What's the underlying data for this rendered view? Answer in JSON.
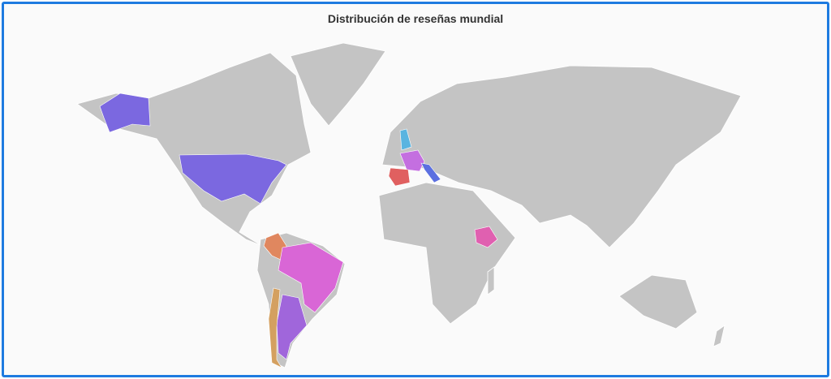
{
  "title": "Distribución de reseñas mundial",
  "highlight_colors": [
    "#7b68e0",
    "#7b68e0",
    "#e0875f",
    "#d966d6",
    "#a066db",
    "#d4a060",
    "#c46fe0",
    "#e06060",
    "#5b6fe0",
    "#5ab4e0",
    "#e060b0"
  ]
}
